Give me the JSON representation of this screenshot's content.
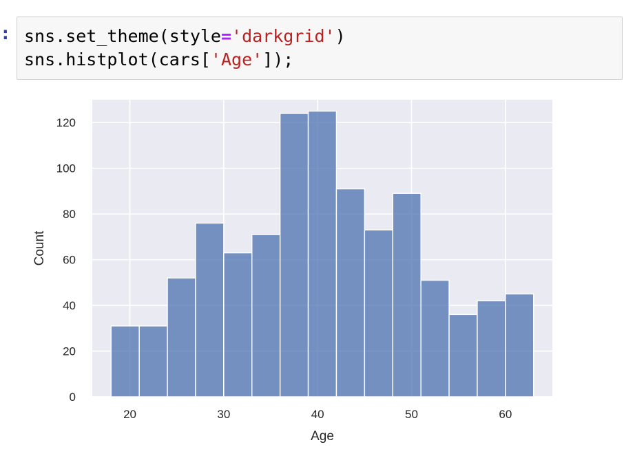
{
  "cell": {
    "prompt": ":",
    "line1": {
      "a": "sns.set_theme(style",
      "op": "=",
      "str": "'darkgrid'",
      "b": ")"
    },
    "line2": {
      "a": "sns.histplot(cars[",
      "str": "'Age'",
      "b": "]);"
    }
  },
  "colors": {
    "plot_bg": "#eaeaf2",
    "grid": "#ffffff",
    "bar": "#4c72b0",
    "text": "#262626"
  },
  "chart_data": {
    "type": "bar",
    "style": "darkgrid",
    "title": "",
    "xlabel": "Age",
    "ylabel": "Count",
    "xlim": [
      16,
      65
    ],
    "ylim": [
      0,
      130
    ],
    "x_ticks": [
      20,
      30,
      40,
      50,
      60
    ],
    "y_ticks": [
      0,
      20,
      40,
      60,
      80,
      100,
      120
    ],
    "bin_edges": [
      18,
      21,
      24,
      27,
      30,
      33,
      36,
      39,
      42,
      45,
      48,
      51,
      54,
      57,
      60,
      63
    ],
    "values": [
      31,
      31,
      52,
      76,
      63,
      71,
      124,
      125,
      91,
      73,
      89,
      51,
      36,
      42,
      45
    ],
    "grid": true,
    "legend": false
  }
}
